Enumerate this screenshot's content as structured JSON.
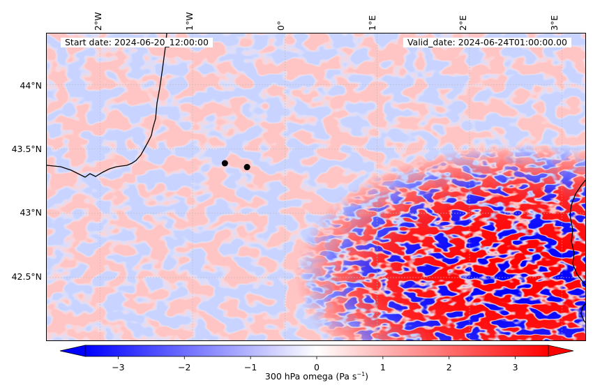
{
  "annotations": {
    "start_date": "Start date: 2024-06-20_12:00:00",
    "valid_date": "Valid_date: 2024-06-24T01:00:00.00"
  },
  "map": {
    "lon_range": [
      -2.58,
      3.27
    ],
    "lat_range": [
      42.0,
      44.4
    ],
    "lat_ticks": [
      {
        "value": 44.0,
        "label": "44°N"
      },
      {
        "value": 43.5,
        "label": "43.5°N"
      },
      {
        "value": 43.0,
        "label": "43°N"
      },
      {
        "value": 42.5,
        "label": "42.5°N"
      }
    ],
    "lon_ticks": [
      {
        "value": -2,
        "label": "2°W"
      },
      {
        "value": -1,
        "label": "1°W"
      },
      {
        "value": 0,
        "label": "0°"
      },
      {
        "value": 1,
        "label": "1°E"
      },
      {
        "value": 2,
        "label": "2°E"
      },
      {
        "value": 3,
        "label": "3°E"
      }
    ],
    "points": [
      {
        "lon": -0.65,
        "lat": 43.39
      },
      {
        "lon": -0.41,
        "lat": 43.36
      }
    ]
  },
  "colorbar": {
    "title_main": "300 hPa omega (Pa s",
    "title_exp": "−1",
    "title_end": ")",
    "range": [
      -3.5,
      3.5
    ],
    "ticks": [
      {
        "value": -3,
        "label": "−3"
      },
      {
        "value": -2,
        "label": "−2"
      },
      {
        "value": -1,
        "label": "−1"
      },
      {
        "value": 0,
        "label": "0"
      },
      {
        "value": 1,
        "label": "1"
      },
      {
        "value": 2,
        "label": "2"
      },
      {
        "value": 3,
        "label": "3"
      }
    ],
    "low_color": "#0000ff",
    "mid_color": "#ffffff",
    "high_color": "#ff0000"
  }
}
